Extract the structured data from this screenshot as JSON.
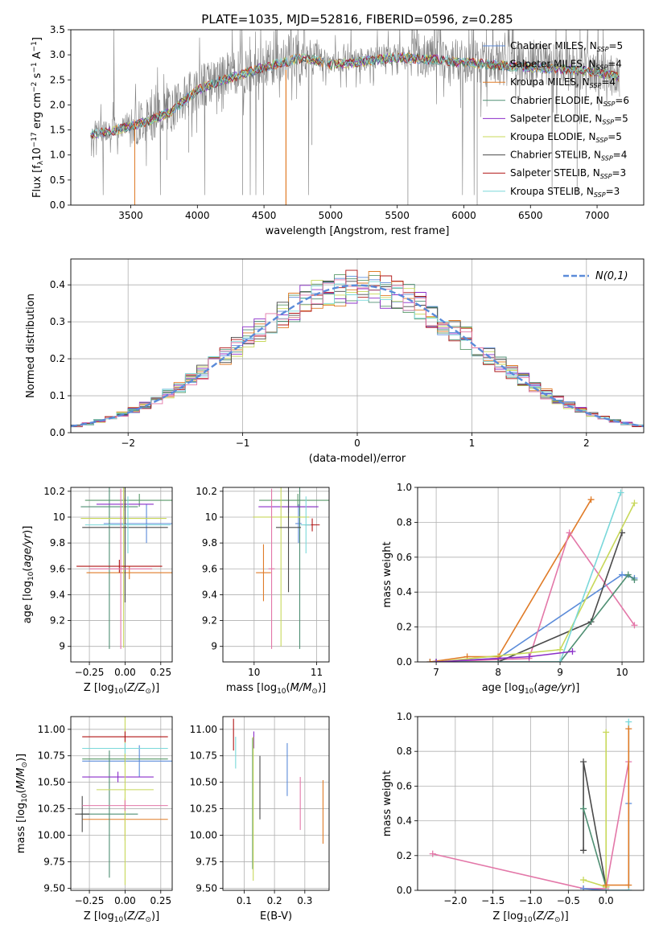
{
  "figure": {
    "title": "PLATE=1035, MJD=52816, FIBERID=0596, z=0.285",
    "colors": {
      "chabrier_miles": "#5b8bd9",
      "salpeter_miles": "#5a9a6a",
      "kroupa_miles": "#e07b27",
      "chabrier_elodie": "#4f8f73",
      "salpeter_elodie": "#8b2fc9",
      "kroupa_elodie": "#c8d85a",
      "chabrier_stelib": "#4a4a4a",
      "salpeter_stelib": "#b01515",
      "kroupa_stelib": "#7ad8da",
      "pink": "#e377a8",
      "data_gray": "#808080"
    }
  },
  "legend_models": [
    {
      "name": "Chabrier MILES",
      "nssp": "5",
      "color": "#5b8bd9"
    },
    {
      "name": "Salpeter MILES",
      "nssp": "4",
      "color": "#5a9a6a"
    },
    {
      "name": "Kroupa MILES",
      "nssp": "4",
      "color": "#e07b27"
    },
    {
      "name": "Chabrier ELODIE",
      "nssp": "6",
      "color": "#4f8f73"
    },
    {
      "name": "Salpeter ELODIE",
      "nssp": "5",
      "color": "#8b2fc9"
    },
    {
      "name": "Kroupa ELODIE",
      "nssp": "5",
      "color": "#c8d85a"
    },
    {
      "name": "Chabrier STELIB",
      "nssp": "4",
      "color": "#4a4a4a"
    },
    {
      "name": "Salpeter STELIB",
      "nssp": "3",
      "color": "#b01515"
    },
    {
      "name": "Kroupa STELIB",
      "nssp": "3",
      "color": "#7ad8da"
    }
  ],
  "chart_data": [
    {
      "id": "spectrum",
      "type": "line",
      "xlabel": "wavelength [Angstrom, rest frame]",
      "ylabel": "Flux [f_λ 10^-17 erg cm^-2 s^-1 A^-1]",
      "xlim": [
        3050,
        7350
      ],
      "ylim": [
        0,
        3.5
      ],
      "xticks": [
        3500,
        4000,
        4500,
        5000,
        5500,
        6000,
        6500,
        7000
      ],
      "yticks": [
        0.0,
        0.5,
        1.0,
        1.5,
        2.0,
        2.5,
        3.0,
        3.5
      ],
      "continuum": {
        "x": [
          3200,
          3400,
          3600,
          3800,
          4000,
          4200,
          4500,
          4800,
          5000,
          5200,
          5500,
          5800,
          6000,
          6200,
          6500,
          6800,
          7000,
          7170
        ],
        "y": [
          1.45,
          1.55,
          1.7,
          1.9,
          2.35,
          2.55,
          2.8,
          3.0,
          2.85,
          2.9,
          3.0,
          2.95,
          2.9,
          2.85,
          2.8,
          2.75,
          2.7,
          2.6
        ]
      },
      "absorption_dips": [
        {
          "x": 3530,
          "y": 0.0
        },
        {
          "x": 3770,
          "y": 0.9
        },
        {
          "x": 3935,
          "y": 1.05
        },
        {
          "x": 4340,
          "y": 0.2
        },
        {
          "x": 4665,
          "y": 0.0
        },
        {
          "x": 4860,
          "y": 1.2
        },
        {
          "x": 5580,
          "y": 0.0
        },
        {
          "x": 6100,
          "y": 0.0
        },
        {
          "x": 6850,
          "y": 0.2
        }
      ],
      "grid": false,
      "legend": "right"
    },
    {
      "id": "residual_hist",
      "type": "line",
      "xlabel": "(data-model)/error",
      "ylabel": "Normed distribution",
      "xlim": [
        -2.5,
        2.5
      ],
      "ylim": [
        0,
        0.47
      ],
      "xticks": [
        -2,
        -1,
        0,
        1,
        2
      ],
      "yticks": [
        0.0,
        0.1,
        0.2,
        0.3,
        0.4
      ],
      "normal_label": "N(0,1)",
      "grid": true,
      "legend": "top-right"
    },
    {
      "id": "age_vs_Z",
      "type": "scatter",
      "xlabel": "Z [log10(Z/Z⊙)]",
      "ylabel": "age  [log10(age/yr)]",
      "xlim": [
        -0.38,
        0.33
      ],
      "ylim": [
        8.88,
        10.23
      ],
      "xticks": [
        -0.25,
        0.0,
        0.25
      ],
      "xtick_labels": [
        "−0.25",
        "0.00",
        "0.25"
      ],
      "yticks": [
        9.0,
        9.2,
        9.4,
        9.6,
        9.8,
        10.0,
        10.2
      ],
      "points": [
        {
          "color": "#5b8bd9",
          "x": 0.15,
          "y": 9.95,
          "xerr": 0.3,
          "yerr": 0.15
        },
        {
          "color": "#5a9a6a",
          "x": 0.1,
          "y": 10.13,
          "xerr": 0.38,
          "yerr": 0.05
        },
        {
          "color": "#e07b27",
          "x": 0.03,
          "y": 9.57,
          "xerr": 0.3,
          "yerr": 0.05
        },
        {
          "color": "#4f8f73",
          "x": -0.11,
          "y": 10.08,
          "xerr": 0.2,
          "yerr": 1.1
        },
        {
          "color": "#8b2fc9",
          "x": 0.0,
          "y": 10.1,
          "xerr": 0.2,
          "yerr": 0.05
        },
        {
          "color": "#c8d85a",
          "x": -0.01,
          "y": 9.99,
          "xerr": 0.3,
          "yerr": 1.0
        },
        {
          "color": "#4a4a4a",
          "x": 0.0,
          "y": 9.92,
          "xerr": 0.3,
          "yerr": 0.58
        },
        {
          "color": "#b01515",
          "x": -0.04,
          "y": 9.62,
          "xerr": 0.3,
          "yerr": 0.05
        },
        {
          "color": "#7ad8da",
          "x": 0.02,
          "y": 9.94,
          "xerr": 0.3,
          "yerr": 0.22
        },
        {
          "color": "#e377a8",
          "x": -0.03,
          "y": 9.6,
          "xerr": 0.22,
          "yerr": 0.62
        }
      ],
      "grid": true
    },
    {
      "id": "age_vs_mass",
      "type": "scatter",
      "xlabel": "mass [log10(M/M⊙)]",
      "ylabel": "",
      "xlim": [
        9.5,
        11.2
      ],
      "ylim": [
        8.88,
        10.23
      ],
      "xticks": [
        10,
        11
      ],
      "yticks": [
        9.0,
        9.2,
        9.4,
        9.6,
        9.8,
        10.0,
        10.2
      ],
      "points": [
        {
          "color": "#5b8bd9",
          "x": 10.71,
          "y": 9.95,
          "xerr": 0.05,
          "yerr": 0.15
        },
        {
          "color": "#5a9a6a",
          "x": 10.7,
          "y": 10.13,
          "xerr": 0.62,
          "yerr": 0.05
        },
        {
          "color": "#e07b27",
          "x": 10.15,
          "y": 9.57,
          "xerr": 0.12,
          "yerr": 0.22
        },
        {
          "color": "#4f8f73",
          "x": 10.73,
          "y": 10.08,
          "xerr": 0.28,
          "yerr": 1.1
        },
        {
          "color": "#8b2fc9",
          "x": 10.55,
          "y": 10.08,
          "xerr": 0.48,
          "yerr": 0.05
        },
        {
          "color": "#c8d85a",
          "x": 10.43,
          "y": 10.0,
          "xerr": 0.45,
          "yerr": 1.0
        },
        {
          "color": "#4a4a4a",
          "x": 10.55,
          "y": 9.92,
          "xerr": 0.2,
          "yerr": 0.5
        },
        {
          "color": "#b01515",
          "x": 10.93,
          "y": 9.94,
          "xerr": 0.12,
          "yerr": 0.05
        },
        {
          "color": "#7ad8da",
          "x": 10.83,
          "y": 9.94,
          "xerr": 0.08,
          "yerr": 0.22
        },
        {
          "color": "#e377a8",
          "x": 10.28,
          "y": 9.6,
          "xerr": 0.05,
          "yerr": 0.62
        }
      ],
      "grid": true
    },
    {
      "id": "massweight_vs_age",
      "type": "line",
      "xlabel": "age  [log10(age/yr)]",
      "ylabel": "mass weight",
      "xlim": [
        6.7,
        10.35
      ],
      "ylim": [
        0,
        1.0
      ],
      "xticks": [
        7,
        8,
        9,
        10
      ],
      "yticks": [
        0.0,
        0.2,
        0.4,
        0.6,
        0.8,
        1.0
      ],
      "series": [
        {
          "color": "#5b8bd9",
          "x": [
            6.9,
            8.0,
            10.0,
            10.2
          ],
          "y": [
            0.0,
            0.02,
            0.5,
            0.48
          ]
        },
        {
          "color": "#e07b27",
          "x": [
            6.9,
            7.5,
            8.0,
            9.5
          ],
          "y": [
            0.0,
            0.03,
            0.03,
            0.93
          ]
        },
        {
          "color": "#e377a8",
          "x": [
            7.0,
            8.5,
            9.15,
            10.2
          ],
          "y": [
            0.0,
            0.02,
            0.74,
            0.21
          ]
        },
        {
          "color": "#4a4a4a",
          "x": [
            7.0,
            8.0,
            9.5,
            10.0
          ],
          "y": [
            0.0,
            0.0,
            0.23,
            0.74
          ]
        },
        {
          "color": "#4f8f73",
          "x": [
            7.0,
            9.0,
            10.1,
            10.2
          ],
          "y": [
            0.0,
            0.0,
            0.5,
            0.47
          ]
        },
        {
          "color": "#c8d85a",
          "x": [
            7.0,
            9.0,
            10.2
          ],
          "y": [
            0.0,
            0.07,
            0.91
          ]
        },
        {
          "color": "#7ad8da",
          "x": [
            7.0,
            9.0,
            9.98
          ],
          "y": [
            0.0,
            0.0,
            0.97
          ]
        },
        {
          "color": "#8b2fc9",
          "x": [
            7.0,
            8.5,
            9.2
          ],
          "y": [
            0.0,
            0.03,
            0.06
          ]
        }
      ],
      "grid": true
    },
    {
      "id": "mass_vs_Z",
      "type": "scatter",
      "xlabel": "Z [log10(Z/Z⊙)]",
      "ylabel": "mass [log10(M/M⊙)]",
      "xlim": [
        -0.38,
        0.33
      ],
      "ylim": [
        9.48,
        11.12
      ],
      "xticks": [
        -0.25,
        0.0,
        0.25
      ],
      "xtick_labels": [
        "−0.25",
        "0.00",
        "0.25"
      ],
      "yticks": [
        9.5,
        9.75,
        10.0,
        10.25,
        10.5,
        10.75,
        11.0
      ],
      "ytick_labels": [
        "9.50",
        "9.75",
        "10.00",
        "10.25",
        "10.50",
        "10.75",
        "11.00"
      ],
      "points": [
        {
          "color": "#5b8bd9",
          "x": 0.1,
          "y": 10.7,
          "xerr": 0.4,
          "yerr": 0.15
        },
        {
          "color": "#5a9a6a",
          "x": 0.0,
          "y": 10.72,
          "xerr": 0.3,
          "yerr": 0.05
        },
        {
          "color": "#e07b27",
          "x": 0.0,
          "y": 10.15,
          "xerr": 0.3,
          "yerr": 0.2
        },
        {
          "color": "#4f8f73",
          "x": -0.11,
          "y": 10.2,
          "xerr": 0.2,
          "yerr": 0.6
        },
        {
          "color": "#8b2fc9",
          "x": -0.05,
          "y": 10.55,
          "xerr": 0.25,
          "yerr": 0.05
        },
        {
          "color": "#c8d85a",
          "x": 0.0,
          "y": 10.43,
          "xerr": 0.2,
          "yerr": 0.9
        },
        {
          "color": "#4a4a4a",
          "x": -0.3,
          "y": 10.2,
          "xerr": 0.05,
          "yerr": 0.17
        },
        {
          "color": "#b01515",
          "x": 0.0,
          "y": 10.93,
          "xerr": 0.3,
          "yerr": 0.05
        },
        {
          "color": "#7ad8da",
          "x": 0.0,
          "y": 10.82,
          "xerr": 0.3,
          "yerr": 0.05
        },
        {
          "color": "#e377a8",
          "x": 0.0,
          "y": 10.28,
          "xerr": 0.3,
          "yerr": 0.05
        }
      ],
      "grid": true
    },
    {
      "id": "mass_vs_ebv",
      "type": "scatter",
      "xlabel": "E(B-V)",
      "ylabel": "",
      "xlim": [
        0.03,
        0.38
      ],
      "ylim": [
        9.48,
        11.12
      ],
      "xticks": [
        0.1,
        0.2,
        0.3
      ],
      "xtick_labels": [
        "0.1",
        "0.2",
        "0.3"
      ],
      "yticks": [
        9.5,
        9.75,
        10.0,
        10.25,
        10.5,
        10.75,
        11.0
      ],
      "ytick_labels": [
        "9.50",
        "9.75",
        "10.00",
        "10.25",
        "10.50",
        "10.75",
        "11.00"
      ],
      "points": [
        {
          "color": "#b01515",
          "x": 0.065,
          "y": 10.95,
          "yerr": 0.15
        },
        {
          "color": "#7ad8da",
          "x": 0.072,
          "y": 10.78,
          "yerr": 0.15
        },
        {
          "color": "#8b2fc9",
          "x": 0.132,
          "y": 10.9,
          "yerr": 0.08
        },
        {
          "color": "#5a9a6a",
          "x": 0.128,
          "y": 10.3,
          "yerr": 0.62
        },
        {
          "color": "#c8d85a",
          "x": 0.13,
          "y": 10.25,
          "yerr": 0.68
        },
        {
          "color": "#4a4a4a",
          "x": 0.152,
          "y": 10.45,
          "yerr": 0.3
        },
        {
          "color": "#5b8bd9",
          "x": 0.242,
          "y": 10.62,
          "yerr": 0.25
        },
        {
          "color": "#e377a8",
          "x": 0.285,
          "y": 10.3,
          "yerr": 0.25
        },
        {
          "color": "#e07b27",
          "x": 0.36,
          "y": 10.22,
          "yerr": 0.3
        }
      ],
      "grid": true
    },
    {
      "id": "massweight_vs_Z",
      "type": "line",
      "xlabel": "Z [log10(Z/Z⊙)]",
      "ylabel": "mass weight",
      "xlim": [
        -2.5,
        0.5
      ],
      "ylim": [
        0,
        1.0
      ],
      "xticks": [
        -2.0,
        -1.5,
        -1.0,
        -0.5,
        0.0
      ],
      "xtick_labels": [
        "−2.0",
        "−1.5",
        "−1.0",
        "−0.5",
        "0.0"
      ],
      "yticks": [
        0.0,
        0.2,
        0.4,
        0.6,
        0.8,
        1.0
      ],
      "series": [
        {
          "color": "#e377a8",
          "x": [
            -2.3,
            -0.3,
            0.0,
            0.3
          ],
          "y": [
            0.21,
            0.01,
            0.01,
            0.74
          ]
        },
        {
          "color": "#5b8bd9",
          "x": [
            -0.3,
            0.0,
            0.3,
            0.3
          ],
          "y": [
            0.01,
            0.0,
            0.0,
            0.5
          ]
        },
        {
          "color": "#4a4a4a",
          "x": [
            -0.3,
            -0.3,
            0.0,
            0.0
          ],
          "y": [
            0.23,
            0.74,
            0.02,
            0.0
          ]
        },
        {
          "color": "#4f8f73",
          "x": [
            -0.3,
            -0.3,
            0.0
          ],
          "y": [
            0.47,
            0.47,
            0.02
          ]
        },
        {
          "color": "#c8d85a",
          "x": [
            -0.3,
            0.0,
            0.0
          ],
          "y": [
            0.06,
            0.02,
            0.91
          ]
        },
        {
          "color": "#7ad8da",
          "x": [
            0.0,
            0.3,
            0.3
          ],
          "y": [
            0.0,
            0.0,
            0.97
          ]
        },
        {
          "color": "#e07b27",
          "x": [
            0.0,
            0.3,
            0.3
          ],
          "y": [
            0.03,
            0.03,
            0.93
          ]
        }
      ],
      "grid": true
    }
  ]
}
